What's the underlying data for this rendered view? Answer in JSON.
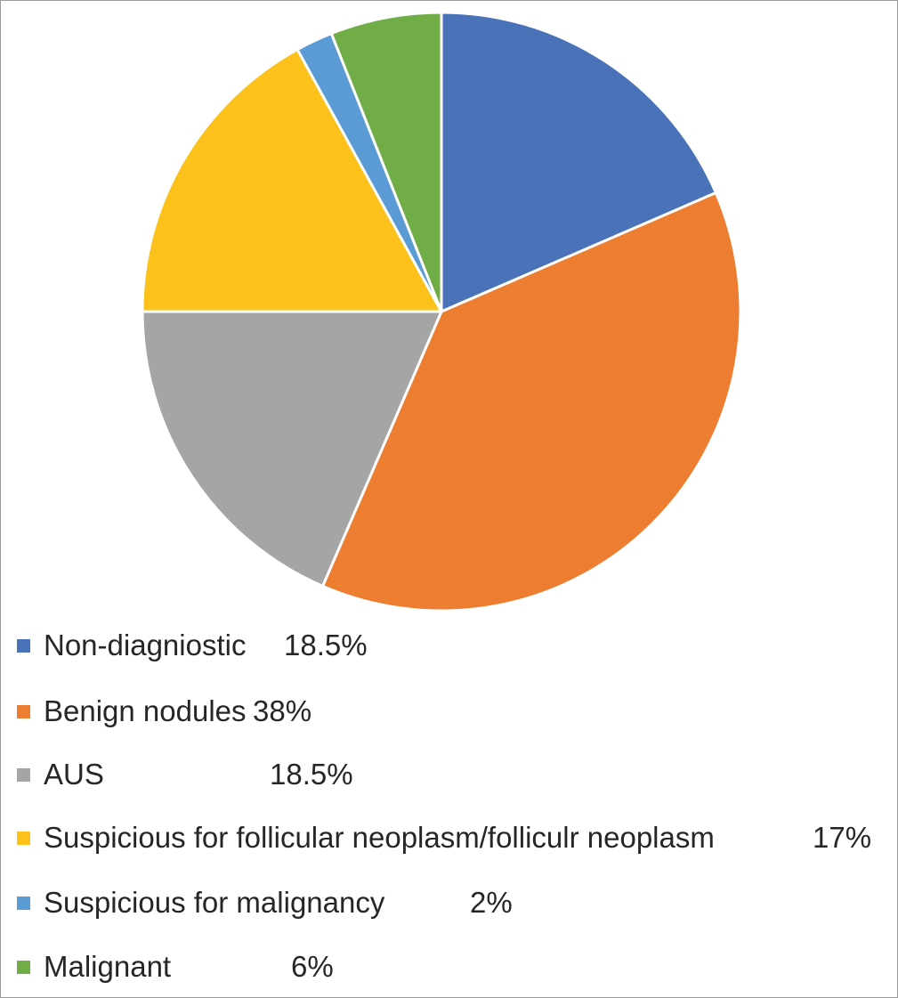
{
  "chart_data": {
    "type": "pie",
    "title": "",
    "start_angle": "12 o'clock",
    "direction": "clockwise",
    "slices": [
      {
        "label": "Non-diagniostic",
        "value": 18.5,
        "display": "18.5%",
        "color": "#4a72b8"
      },
      {
        "label": "Benign nodules",
        "value": 38,
        "display": "38%",
        "color": "#ed7d31"
      },
      {
        "label": "AUS",
        "value": 18.5,
        "display": "18.5%",
        "color": "#a5a5a5"
      },
      {
        "label": "Suspicious for follicular neoplasm/folliculr neoplasm",
        "value": 17,
        "display": "17%",
        "color": "#fcc11a"
      },
      {
        "label": "Suspicious for malignancy",
        "value": 2,
        "display": "2%",
        "color": "#5b9bd5"
      },
      {
        "label": "Malignant",
        "value": 6,
        "display": "6%",
        "color": "#70ad47"
      }
    ],
    "legend_position": "bottom"
  }
}
